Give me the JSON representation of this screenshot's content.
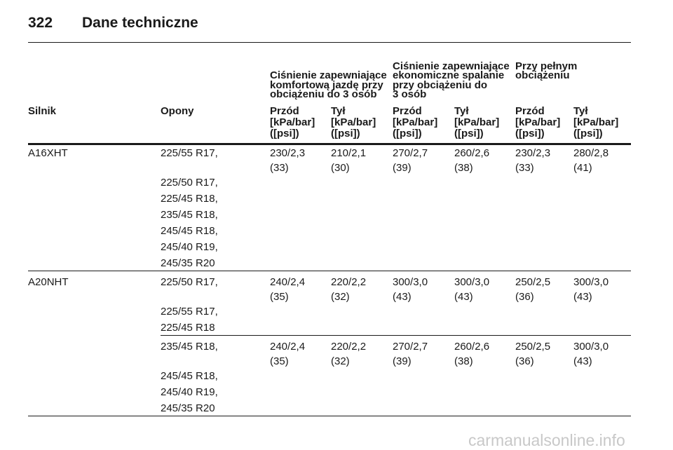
{
  "header": {
    "page": "322",
    "title": "Dane techniczne"
  },
  "table": {
    "group_headers": [
      [
        "Ciśnienie zapewniające",
        "komfortową jazdę przy",
        "obciążeniu do 3 osób"
      ],
      [
        "Ciśnienie zapewniające",
        "ekonomiczne spalanie",
        "przy obciążeniu do",
        "3 osób"
      ],
      [
        "Przy pełnym",
        "obciążeniu"
      ]
    ],
    "columns": [
      "Silnik",
      "Opony",
      "Przód",
      "Tył",
      "Przód",
      "Tył",
      "Przód",
      "Tył"
    ],
    "units": [
      [
        "[kPa/bar]",
        "([psi])"
      ],
      [
        "[kPa/bar]",
        "([psi])"
      ],
      [
        "[kPa/bar]",
        "([psi])"
      ],
      [
        "[kPa/bar]",
        "([psi])"
      ],
      [
        "[kPa/bar]",
        "([psi])"
      ],
      [
        "[kPa/bar]",
        "([psi])"
      ]
    ],
    "engines": [
      {
        "engine": "A16XHT",
        "sets": [
          {
            "tyres": [
              "225/55 R17,",
              "225/50 R17,",
              "225/45 R18,",
              "235/45 R18,",
              "245/45 R18,",
              "245/40 R19,",
              "245/35 R20"
            ],
            "pressures": [
              [
                "230/2,3",
                "(33)"
              ],
              [
                "210/2,1",
                "(30)"
              ],
              [
                "270/2,7",
                "(39)"
              ],
              [
                "260/2,6",
                "(38)"
              ],
              [
                "230/2,3",
                "(33)"
              ],
              [
                "280/2,8",
                "(41)"
              ]
            ]
          }
        ]
      },
      {
        "engine": "A20NHT",
        "sets": [
          {
            "tyres": [
              "225/50 R17,",
              "225/55 R17,",
              "225/45 R18"
            ],
            "pressures": [
              [
                "240/2,4",
                "(35)"
              ],
              [
                "220/2,2",
                "(32)"
              ],
              [
                "300/3,0",
                "(43)"
              ],
              [
                "300/3,0",
                "(43)"
              ],
              [
                "250/2,5",
                "(36)"
              ],
              [
                "300/3,0",
                "(43)"
              ]
            ]
          },
          {
            "tyres": [
              "235/45 R18,",
              "245/45 R18,",
              "245/40 R19,",
              "245/35 R20"
            ],
            "pressures": [
              [
                "240/2,4",
                "(35)"
              ],
              [
                "220/2,2",
                "(32)"
              ],
              [
                "270/2,7",
                "(39)"
              ],
              [
                "260/2,6",
                "(38)"
              ],
              [
                "250/2,5",
                "(36)"
              ],
              [
                "300/3,0",
                "(43)"
              ]
            ]
          }
        ]
      }
    ]
  },
  "watermark": "carmanualsonline.info"
}
